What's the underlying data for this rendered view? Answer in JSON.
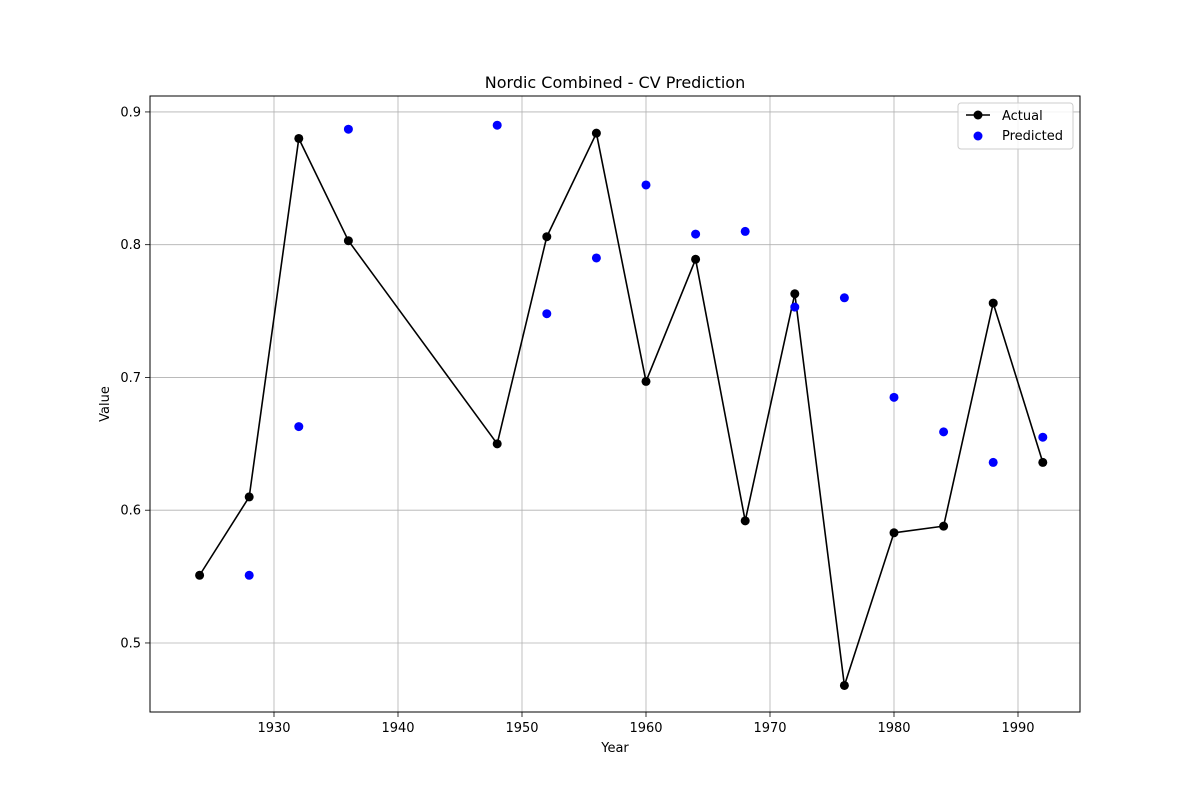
{
  "chart_data": {
    "type": "line",
    "title": "Nordic Combined - CV Prediction",
    "xlabel": "Year",
    "ylabel": "Value",
    "xlim": [
      1920,
      1995
    ],
    "ylim": [
      0.448,
      0.912
    ],
    "xticks": [
      1930,
      1940,
      1950,
      1960,
      1970,
      1980,
      1990
    ],
    "yticks": [
      0.5,
      0.6,
      0.7,
      0.8,
      0.9
    ],
    "xtick_labels": [
      "1930",
      "1940",
      "1950",
      "1960",
      "1970",
      "1980",
      "1990"
    ],
    "ytick_labels": [
      "0.5",
      "0.6",
      "0.7",
      "0.8",
      "0.9"
    ],
    "grid": true,
    "legend_position": "top-right",
    "series": [
      {
        "name": "Actual",
        "style": "line-with-markers",
        "color": "#000000",
        "x": [
          1924,
          1928,
          1932,
          1936,
          1948,
          1952,
          1956,
          1960,
          1964,
          1968,
          1972,
          1976,
          1980,
          1984,
          1988,
          1992
        ],
        "values": [
          0.551,
          0.61,
          0.88,
          0.803,
          0.65,
          0.806,
          0.884,
          0.697,
          0.789,
          0.592,
          0.763,
          0.468,
          0.583,
          0.588,
          0.756,
          0.636
        ]
      },
      {
        "name": "Predicted",
        "style": "scatter",
        "color": "#0000ff",
        "x": [
          1928,
          1932,
          1936,
          1948,
          1952,
          1956,
          1960,
          1964,
          1968,
          1972,
          1976,
          1980,
          1984,
          1988,
          1992
        ],
        "values": [
          0.551,
          0.663,
          0.887,
          0.89,
          0.748,
          0.79,
          0.845,
          0.808,
          0.81,
          0.753,
          0.76,
          0.685,
          0.659,
          0.636,
          0.655
        ]
      }
    ]
  }
}
